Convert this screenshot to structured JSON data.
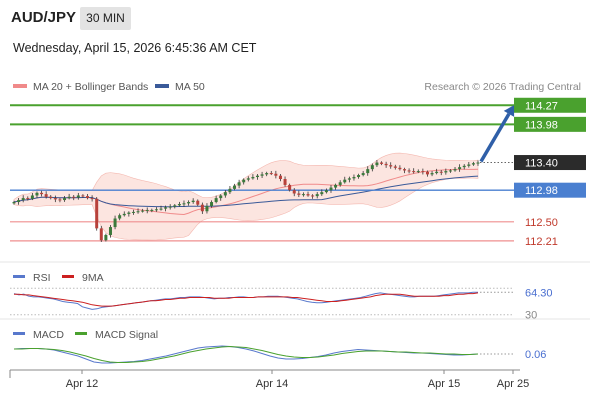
{
  "header": {
    "symbol": "AUD/JPY",
    "timeframe": "30 MIN",
    "datetime": "Wednesday, April 15, 2026 6:45:36 AM CET"
  },
  "legend": {
    "ma20_label": "MA 20 + Bollinger Bands",
    "ma50_label": "MA 50",
    "credit": "Research © 2026 Trading Central",
    "rsi_label": "RSI",
    "rsi_ma_label": "9MA",
    "macd_label": "MACD",
    "macd_signal_label": "MACD Signal"
  },
  "colors": {
    "resistance": "#4aa12e",
    "support_strong": "#4a7fd0",
    "support": "#ef8f8f",
    "bollinger_fill": "#fbdcd6",
    "ma20": "#f08a8a",
    "ma50": "#3a5a99",
    "arrow": "#2f5fa8",
    "candle_up": "#3b7a3b",
    "candle_down": "#b8413b",
    "rsi": "#5878cc",
    "rsi_ma": "#cc2020",
    "macd": "#5878cc",
    "macd_signal": "#4aa12e"
  },
  "chart_data": [
    {
      "type": "candlestick",
      "title": "",
      "x_ticks": [
        "Apr 12",
        "Apr 14",
        "Apr 15",
        "Apr 25"
      ],
      "ylim": [
        111.95,
        114.35
      ],
      "price_levels": [
        {
          "value": 114.27,
          "label": "114.27",
          "kind": "resistance"
        },
        {
          "value": 113.98,
          "label": "113.98",
          "kind": "resistance"
        },
        {
          "value": 113.4,
          "label": "113.40",
          "kind": "current"
        },
        {
          "value": 112.98,
          "label": "112.98",
          "kind": "support_strong"
        },
        {
          "value": 112.5,
          "label": "112.50",
          "kind": "support"
        },
        {
          "value": 112.21,
          "label": "112.21",
          "kind": "support"
        }
      ],
      "close_series": [
        112.8,
        112.83,
        112.86,
        112.85,
        112.9,
        112.94,
        112.92,
        112.88,
        112.86,
        112.84,
        112.83,
        112.86,
        112.88,
        112.87,
        112.9,
        112.89,
        112.86,
        112.85,
        112.4,
        112.22,
        112.3,
        112.42,
        112.55,
        112.6,
        112.62,
        112.64,
        112.65,
        112.66,
        112.67,
        112.68,
        112.68,
        112.69,
        112.7,
        112.72,
        112.73,
        112.75,
        112.77,
        112.78,
        112.8,
        112.82,
        112.76,
        112.66,
        112.74,
        112.8,
        112.86,
        112.9,
        112.95,
        113.0,
        113.05,
        113.1,
        113.14,
        113.16,
        113.18,
        113.2,
        113.22,
        113.24,
        113.23,
        113.2,
        113.15,
        113.06,
        112.98,
        112.93,
        112.91,
        112.92,
        112.9,
        112.89,
        112.92,
        112.95,
        112.98,
        113.02,
        113.06,
        113.1,
        113.14,
        113.16,
        113.18,
        113.21,
        113.24,
        113.3,
        113.36,
        113.4,
        113.38,
        113.36,
        113.34,
        113.32,
        113.3,
        113.28,
        113.27,
        113.26,
        113.27,
        113.26,
        113.22,
        113.24,
        113.26,
        113.25,
        113.27,
        113.28,
        113.3,
        113.33,
        113.35,
        113.37,
        113.39,
        113.4
      ],
      "projection_target": 114.27
    },
    {
      "type": "line",
      "title": "RSI",
      "series": [
        {
          "name": "RSI",
          "values": [
            62,
            60,
            61,
            58,
            57,
            57,
            56,
            55,
            54,
            52,
            50,
            49,
            48,
            47,
            42,
            40,
            38,
            39,
            41,
            42,
            43,
            44,
            45,
            46,
            47,
            48,
            49,
            50,
            51,
            52,
            53,
            54,
            54,
            55,
            56,
            56,
            57,
            57,
            57,
            56,
            55,
            54,
            55,
            55,
            56,
            56,
            57,
            57,
            56,
            56,
            57,
            57,
            58,
            58,
            58,
            57,
            56,
            55,
            54,
            52,
            50,
            49,
            48,
            48,
            49,
            50,
            51,
            52,
            53,
            54,
            55,
            56,
            58,
            60,
            62,
            63,
            62,
            61,
            60,
            59,
            58,
            57,
            57,
            58,
            58,
            58,
            58,
            59,
            60,
            61,
            62,
            63,
            63,
            63,
            64,
            64
          ]
        },
        {
          "name": "9MA",
          "values": [
            61,
            61,
            60,
            60,
            59,
            58,
            57,
            56,
            55,
            54,
            53,
            52,
            51,
            50,
            49,
            47,
            45,
            44,
            43,
            43,
            43,
            44,
            45,
            46,
            47,
            48,
            49,
            50,
            51,
            51,
            52,
            53,
            53,
            54,
            55,
            55,
            56,
            56,
            56,
            56,
            56,
            55,
            55,
            55,
            55,
            56,
            56,
            56,
            56,
            56,
            57,
            57,
            57,
            57,
            57,
            57,
            57,
            56,
            56,
            55,
            54,
            53,
            52,
            51,
            50,
            50,
            50,
            51,
            52,
            53,
            54,
            55,
            56,
            57,
            59,
            60,
            61,
            61,
            61,
            61,
            60,
            59,
            58,
            58,
            58,
            58,
            58,
            58,
            59,
            59,
            60,
            61,
            61,
            62,
            62,
            63
          ]
        }
      ],
      "ylim": [
        25,
        75
      ],
      "level_labels": [
        "64.30",
        "30"
      ]
    },
    {
      "type": "line",
      "title": "MACD",
      "series": [
        {
          "name": "MACD",
          "values": [
            0.16,
            0.17,
            0.17,
            0.17,
            0.16,
            0.14,
            0.1,
            0.06,
            0.02,
            -0.04,
            -0.1,
            -0.12,
            -0.12,
            -0.11,
            -0.1,
            -0.09,
            -0.07,
            -0.04,
            -0.01,
            0.02,
            0.06,
            0.1,
            0.14,
            0.18,
            0.2,
            0.21,
            0.22,
            0.21,
            0.19,
            0.16,
            0.12,
            0.07,
            0.02,
            -0.02,
            -0.04,
            -0.04,
            -0.03,
            -0.01,
            0.01,
            0.04,
            0.08,
            0.11,
            0.13,
            0.15,
            0.14,
            0.13,
            0.12,
            0.11,
            0.1,
            0.09,
            0.08,
            0.08,
            0.07,
            0.06,
            0.05,
            0.04,
            0.04,
            0.05,
            0.06
          ]
        },
        {
          "name": "MACD Signal",
          "values": [
            0.16,
            0.16,
            0.17,
            0.17,
            0.16,
            0.15,
            0.13,
            0.1,
            0.06,
            0.02,
            -0.03,
            -0.07,
            -0.1,
            -0.11,
            -0.11,
            -0.1,
            -0.09,
            -0.07,
            -0.04,
            -0.01,
            0.02,
            0.06,
            0.1,
            0.13,
            0.16,
            0.18,
            0.2,
            0.21,
            0.2,
            0.19,
            0.16,
            0.13,
            0.09,
            0.05,
            0.02,
            0.0,
            -0.01,
            -0.01,
            0.0,
            0.02,
            0.04,
            0.07,
            0.09,
            0.11,
            0.12,
            0.12,
            0.12,
            0.11,
            0.1,
            0.1,
            0.09,
            0.08,
            0.08,
            0.07,
            0.06,
            0.06,
            0.05,
            0.05,
            0.06
          ]
        }
      ],
      "ylim": [
        -0.18,
        0.28
      ],
      "level_labels": [
        "0.06"
      ]
    }
  ]
}
